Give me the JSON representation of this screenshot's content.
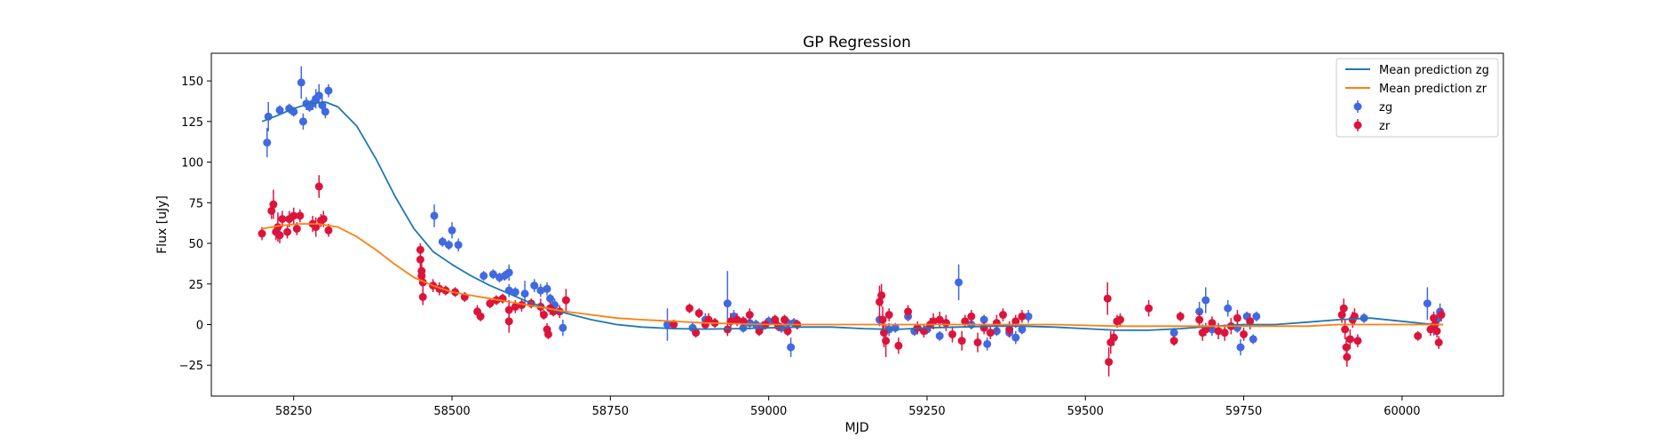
{
  "chart_data": {
    "type": "scatter",
    "title": "GP Regression",
    "xlabel": "MJD",
    "ylabel": "Flux [uJy]",
    "xlim": [
      58120,
      60160
    ],
    "ylim": [
      -44,
      167
    ],
    "xticks": [
      58250,
      58500,
      58750,
      59000,
      59250,
      59500,
      59750,
      60000
    ],
    "yticks": [
      -25,
      0,
      25,
      50,
      75,
      100,
      125,
      150
    ],
    "grid": false,
    "legend_position": "top-right",
    "colors": {
      "pred_zg": "#1f77b4",
      "pred_zr": "#ff7f0e",
      "zg": "#4169e1",
      "zr": "#dc143c"
    },
    "series": [
      {
        "name": "Mean prediction zg",
        "kind": "line",
        "color": "#1f77b4",
        "x": [
          58200,
          58220,
          58250,
          58275,
          58300,
          58320,
          58350,
          58380,
          58410,
          58440,
          58470,
          58500,
          58530,
          58560,
          58590,
          58620,
          58650,
          58680,
          58720,
          58760,
          58800,
          58850,
          58900,
          58950,
          59000,
          59050,
          59100,
          59150,
          59200,
          59250,
          59300,
          59350,
          59400,
          59450,
          59500,
          59550,
          59600,
          59650,
          59700,
          59750,
          59800,
          59850,
          59900,
          59950,
          60000,
          60050,
          60065
        ],
        "y": [
          125,
          128,
          133,
          136,
          137,
          134,
          122,
          102,
          79,
          59,
          45,
          37,
          30,
          24,
          19,
          14,
          10,
          7,
          3,
          0,
          -1.5,
          -2.5,
          -2.8,
          -2.5,
          -2,
          -1.5,
          -1.5,
          -2.5,
          -3,
          -2,
          -1.5,
          -1,
          -1,
          -1.5,
          -2.5,
          -3.5,
          -3.5,
          -2.5,
          -1,
          0,
          0,
          1.5,
          3,
          4,
          2,
          0,
          0
        ]
      },
      {
        "name": "Mean prediction zr",
        "kind": "line",
        "color": "#ff7f0e",
        "x": [
          58200,
          58230,
          58260,
          58290,
          58320,
          58350,
          58380,
          58410,
          58440,
          58470,
          58500,
          58530,
          58560,
          58590,
          58620,
          58650,
          58680,
          58720,
          58760,
          58800,
          58850,
          58900,
          58950,
          59000,
          59050,
          59100,
          59150,
          59200,
          59250,
          59300,
          59350,
          59400,
          59450,
          59500,
          59550,
          59600,
          59650,
          59700,
          59750,
          59800,
          59850,
          59900,
          59950,
          60000,
          60050,
          60065
        ],
        "y": [
          59,
          61,
          62,
          62,
          60,
          54,
          46,
          37,
          29,
          24,
          20,
          18,
          16,
          14,
          12,
          10,
          8,
          6,
          4,
          3,
          2,
          1,
          0.5,
          0,
          0,
          0,
          0,
          0,
          0,
          0,
          0,
          0,
          0,
          -0.5,
          -1,
          -1,
          -1,
          -1,
          -1,
          -1,
          -1,
          0,
          0,
          0,
          0,
          0
        ]
      },
      {
        "name": "zg",
        "kind": "errorbar",
        "color": "#4169e1",
        "points": [
          [
            58208,
            112,
            9
          ],
          [
            58210,
            128,
            9
          ],
          [
            58228,
            132,
            3
          ],
          [
            58243,
            133,
            3
          ],
          [
            58250,
            131,
            3
          ],
          [
            58262,
            149,
            10
          ],
          [
            58265,
            125,
            5
          ],
          [
            58270,
            136,
            4
          ],
          [
            58275,
            134,
            3
          ],
          [
            58280,
            136,
            4
          ],
          [
            58285,
            139,
            6
          ],
          [
            58290,
            141,
            7
          ],
          [
            58295,
            135,
            5
          ],
          [
            58300,
            131,
            4
          ],
          [
            58305,
            144,
            4
          ],
          [
            58472,
            67,
            7
          ],
          [
            58485,
            51,
            3
          ],
          [
            58495,
            49,
            3
          ],
          [
            58500,
            58,
            5
          ],
          [
            58510,
            49,
            4
          ],
          [
            58550,
            30,
            3
          ],
          [
            58565,
            31,
            3
          ],
          [
            58575,
            29,
            3
          ],
          [
            58583,
            30,
            3
          ],
          [
            58590,
            32,
            5
          ],
          [
            58590,
            21,
            4
          ],
          [
            58600,
            20,
            3
          ],
          [
            58615,
            19,
            8
          ],
          [
            58630,
            24,
            4
          ],
          [
            58640,
            21,
            4
          ],
          [
            58650,
            22,
            4
          ],
          [
            58655,
            16,
            3
          ],
          [
            58662,
            12,
            4
          ],
          [
            58675,
            -2,
            5
          ],
          [
            58840,
            0,
            10
          ],
          [
            58880,
            -2,
            3
          ],
          [
            58900,
            3,
            4
          ],
          [
            58935,
            13,
            20
          ],
          [
            58945,
            5,
            4
          ],
          [
            58960,
            -2,
            3
          ],
          [
            58970,
            1,
            4
          ],
          [
            58980,
            0,
            3
          ],
          [
            58990,
            -1,
            3
          ],
          [
            59000,
            2,
            3
          ],
          [
            59010,
            2,
            4
          ],
          [
            59020,
            -2,
            3
          ],
          [
            59030,
            1,
            3
          ],
          [
            59035,
            -14,
            6
          ],
          [
            59040,
            1,
            3
          ],
          [
            59175,
            3,
            4
          ],
          [
            59190,
            -3,
            4
          ],
          [
            59200,
            -2,
            3
          ],
          [
            59220,
            5,
            3
          ],
          [
            59230,
            -4,
            3
          ],
          [
            59250,
            -3,
            3
          ],
          [
            59270,
            -7,
            3
          ],
          [
            59280,
            1,
            3
          ],
          [
            59300,
            26,
            11
          ],
          [
            59320,
            0,
            3
          ],
          [
            59340,
            3,
            3
          ],
          [
            59345,
            -12,
            4
          ],
          [
            59360,
            -4,
            3
          ],
          [
            59380,
            -5,
            3
          ],
          [
            59390,
            -8,
            4
          ],
          [
            59400,
            -3,
            3
          ],
          [
            59410,
            5,
            4
          ],
          [
            59640,
            -5,
            3
          ],
          [
            59680,
            8,
            6
          ],
          [
            59690,
            15,
            8
          ],
          [
            59700,
            -3,
            4
          ],
          [
            59725,
            10,
            5
          ],
          [
            59740,
            -2,
            3
          ],
          [
            59745,
            -14,
            5
          ],
          [
            59755,
            5,
            3
          ],
          [
            59765,
            -9,
            3
          ],
          [
            59770,
            5,
            3
          ],
          [
            59940,
            4,
            3
          ],
          [
            60040,
            13,
            10
          ],
          [
            60050,
            -2,
            5
          ],
          [
            60055,
            3,
            4
          ],
          [
            60060,
            8,
            5
          ]
        ]
      },
      {
        "name": "zr",
        "kind": "errorbar",
        "color": "#dc143c",
        "points": [
          [
            58200,
            56,
            4
          ],
          [
            58215,
            70,
            5
          ],
          [
            58218,
            74,
            9
          ],
          [
            58222,
            57,
            5
          ],
          [
            58225,
            60,
            9
          ],
          [
            58228,
            55,
            5
          ],
          [
            58232,
            65,
            5
          ],
          [
            58240,
            57,
            4
          ],
          [
            58243,
            65,
            5
          ],
          [
            58250,
            67,
            5
          ],
          [
            58255,
            59,
            4
          ],
          [
            58260,
            67,
            4
          ],
          [
            58280,
            62,
            5
          ],
          [
            58285,
            60,
            6
          ],
          [
            58290,
            85,
            7
          ],
          [
            58293,
            64,
            4
          ],
          [
            58297,
            65,
            5
          ],
          [
            58305,
            58,
            4
          ],
          [
            58450,
            46,
            4
          ],
          [
            58450,
            40,
            5
          ],
          [
            58452,
            33,
            5
          ],
          [
            58452,
            30,
            5
          ],
          [
            58454,
            26,
            5
          ],
          [
            58454,
            17,
            5
          ],
          [
            58470,
            24,
            4
          ],
          [
            58480,
            22,
            4
          ],
          [
            58490,
            21,
            3
          ],
          [
            58505,
            20,
            3
          ],
          [
            58520,
            17,
            3
          ],
          [
            58540,
            8,
            4
          ],
          [
            58545,
            5,
            3
          ],
          [
            58560,
            13,
            3
          ],
          [
            58570,
            15,
            3
          ],
          [
            58580,
            16,
            3
          ],
          [
            58590,
            2,
            7
          ],
          [
            58590,
            9,
            6
          ],
          [
            58600,
            11,
            4
          ],
          [
            58610,
            12,
            4
          ],
          [
            58625,
            13,
            3
          ],
          [
            58640,
            11,
            5
          ],
          [
            58645,
            6,
            3
          ],
          [
            58650,
            -3,
            4
          ],
          [
            58652,
            -6,
            3
          ],
          [
            58655,
            10,
            4
          ],
          [
            58660,
            8,
            3
          ],
          [
            58670,
            8,
            4
          ],
          [
            58680,
            15,
            7
          ],
          [
            58850,
            0,
            3
          ],
          [
            58875,
            10,
            3
          ],
          [
            58885,
            -5,
            3
          ],
          [
            58890,
            7,
            3
          ],
          [
            58900,
            0,
            3
          ],
          [
            58905,
            3,
            4
          ],
          [
            58915,
            1,
            3
          ],
          [
            58935,
            -3,
            4
          ],
          [
            58940,
            2,
            5
          ],
          [
            58950,
            3,
            4
          ],
          [
            58960,
            2,
            3
          ],
          [
            58970,
            6,
            4
          ],
          [
            58985,
            -4,
            3
          ],
          [
            58995,
            0,
            3
          ],
          [
            59010,
            3,
            3
          ],
          [
            59015,
            -1,
            3
          ],
          [
            59025,
            3,
            3
          ],
          [
            59030,
            -4,
            3
          ],
          [
            59045,
            0,
            3
          ],
          [
            59175,
            14,
            10
          ],
          [
            59178,
            18,
            7
          ],
          [
            59180,
            3,
            8
          ],
          [
            59182,
            -5,
            9
          ],
          [
            59185,
            -10,
            10
          ],
          [
            59190,
            6,
            4
          ],
          [
            59205,
            -13,
            5
          ],
          [
            59220,
            8,
            4
          ],
          [
            59235,
            -2,
            4
          ],
          [
            59245,
            -4,
            4
          ],
          [
            59255,
            0,
            4
          ],
          [
            59260,
            2,
            5
          ],
          [
            59270,
            3,
            5
          ],
          [
            59280,
            1,
            5
          ],
          [
            59290,
            -6,
            5
          ],
          [
            59305,
            -10,
            6
          ],
          [
            59310,
            2,
            4
          ],
          [
            59320,
            5,
            4
          ],
          [
            59330,
            -11,
            6
          ],
          [
            59340,
            -2,
            4
          ],
          [
            59350,
            -5,
            4
          ],
          [
            59360,
            1,
            5
          ],
          [
            59370,
            6,
            4
          ],
          [
            59380,
            -3,
            5
          ],
          [
            59390,
            2,
            4
          ],
          [
            59400,
            5,
            4
          ],
          [
            59535,
            16,
            10
          ],
          [
            59537,
            -23,
            9
          ],
          [
            59540,
            -11,
            7
          ],
          [
            59545,
            -8,
            5
          ],
          [
            59550,
            2,
            4
          ],
          [
            59555,
            3,
            4
          ],
          [
            59600,
            10,
            5
          ],
          [
            59640,
            -10,
            3
          ],
          [
            59650,
            5,
            3
          ],
          [
            59680,
            3,
            5
          ],
          [
            59685,
            -5,
            5
          ],
          [
            59690,
            -3,
            4
          ],
          [
            59700,
            1,
            4
          ],
          [
            59710,
            -4,
            5
          ],
          [
            59720,
            -5,
            5
          ],
          [
            59730,
            -1,
            5
          ],
          [
            59740,
            4,
            5
          ],
          [
            59750,
            -6,
            4
          ],
          [
            59760,
            2,
            5
          ],
          [
            59905,
            6,
            5
          ],
          [
            59908,
            10,
            6
          ],
          [
            59910,
            -3,
            6
          ],
          [
            59912,
            -14,
            6
          ],
          [
            59913,
            -20,
            6
          ],
          [
            59918,
            -9,
            6
          ],
          [
            59922,
            3,
            5
          ],
          [
            59925,
            5,
            5
          ],
          [
            59930,
            -10,
            4
          ],
          [
            60025,
            -7,
            3
          ],
          [
            60045,
            -3,
            4
          ],
          [
            60050,
            4,
            4
          ],
          [
            60052,
            0,
            4
          ],
          [
            60055,
            -4,
            4
          ],
          [
            60058,
            -11,
            4
          ],
          [
            60062,
            6,
            4
          ]
        ]
      }
    ]
  }
}
